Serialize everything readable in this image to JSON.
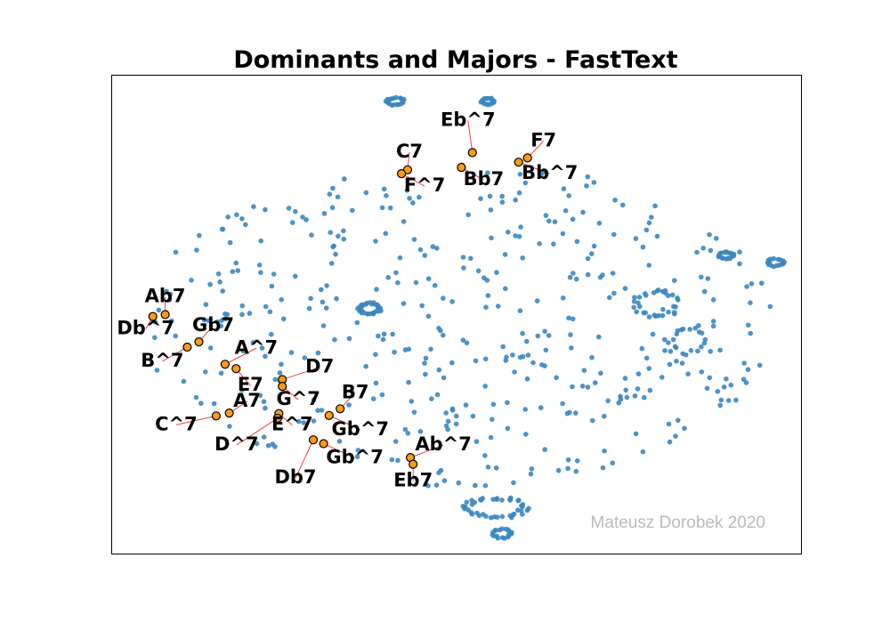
{
  "chart_data": {
    "type": "scatter",
    "title": "Dominants and Majors - FastText",
    "xlabel": "",
    "ylabel": "",
    "xlim": [
      0,
      1000
    ],
    "ylim": [
      0,
      1000
    ],
    "axis_ticks": "none",
    "grid": false,
    "legend": "none",
    "watermark": "Mateusz Dorobek 2020",
    "colors": {
      "background_points": "#3b87c0",
      "highlighted_points": "#ff9a14",
      "highlight_edge": "#000000",
      "arrow": "#e8292c",
      "watermark": "#bbbbbb"
    },
    "highlighted": [
      {
        "label": "Eb^7",
        "x": 523,
        "y": 839
      },
      {
        "label": "C7",
        "x": 429,
        "y": 803
      },
      {
        "label": "F^7",
        "x": 420,
        "y": 795
      },
      {
        "label": "Bb7",
        "x": 507,
        "y": 808
      },
      {
        "label": "F7",
        "x": 603,
        "y": 828
      },
      {
        "label": "Bb^7",
        "x": 590,
        "y": 819
      },
      {
        "label": "Ab7",
        "x": 77,
        "y": 500
      },
      {
        "label": "Db^7",
        "x": 59,
        "y": 496
      },
      {
        "label": "Gb7",
        "x": 126,
        "y": 443
      },
      {
        "label": "B^7",
        "x": 109,
        "y": 432
      },
      {
        "label": "A^7",
        "x": 164,
        "y": 396
      },
      {
        "label": "E7",
        "x": 180,
        "y": 387
      },
      {
        "label": "D7",
        "x": 247,
        "y": 364
      },
      {
        "label": "G^7",
        "x": 247,
        "y": 350
      },
      {
        "label": "A7",
        "x": 170,
        "y": 294
      },
      {
        "label": "C^7",
        "x": 151,
        "y": 288
      },
      {
        "label": "E^7",
        "x": 242,
        "y": 293
      },
      {
        "label": "D^7",
        "x": 240,
        "y": 283
      },
      {
        "label": "B7",
        "x": 331,
        "y": 303
      },
      {
        "label": "Gb^7",
        "x": 315,
        "y": 289
      },
      {
        "label": "Db7",
        "x": 292,
        "y": 238
      },
      {
        "label": "Gb^7 ",
        "x": 307,
        "y": 230
      },
      {
        "label": "Ab^7",
        "x": 433,
        "y": 201
      },
      {
        "label": "Eb7",
        "x": 437,
        "y": 187
      }
    ],
    "clusters": [
      {
        "cx": 411,
        "cy": 946,
        "rx": 13,
        "ry": 8,
        "n": 20
      },
      {
        "cx": 545,
        "cy": 946,
        "rx": 9,
        "ry": 8,
        "n": 16
      },
      {
        "cx": 891,
        "cy": 624,
        "rx": 11,
        "ry": 7,
        "n": 18
      },
      {
        "cx": 963,
        "cy": 609,
        "rx": 12,
        "ry": 8,
        "n": 16
      },
      {
        "cx": 557,
        "cy": 96,
        "rx": 44,
        "ry": 22,
        "n": 42
      },
      {
        "cx": 566,
        "cy": 42,
        "rx": 13,
        "ry": 10,
        "n": 18
      },
      {
        "cx": 374,
        "cy": 513,
        "rx": 16,
        "ry": 12,
        "n": 30
      },
      {
        "cx": 790,
        "cy": 522,
        "rx": 32,
        "ry": 30,
        "n": 30
      },
      {
        "cx": 835,
        "cy": 446,
        "rx": 26,
        "ry": 28,
        "n": 18
      }
    ],
    "background_n": 420
  }
}
